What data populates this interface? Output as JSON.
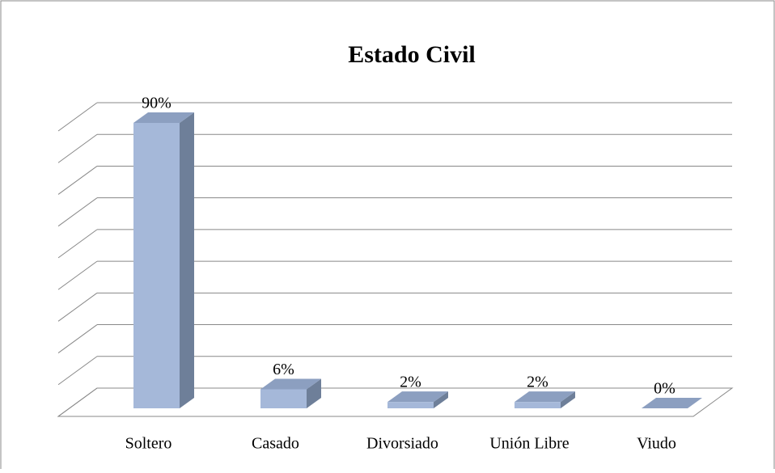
{
  "chart_data": {
    "type": "bar3d",
    "title": "Estado Civil",
    "categories": [
      "Soltero",
      "Casado",
      "Divorsiado",
      "Unión Libre",
      "Viudo"
    ],
    "values": [
      90,
      6,
      2,
      2,
      0
    ],
    "value_labels": [
      "90%",
      "6%",
      "2%",
      "2%",
      "0%"
    ],
    "color": "#a5b8d9",
    "ylim": [
      0,
      90
    ],
    "yticks": [
      0,
      10,
      20,
      30,
      40,
      50,
      60,
      70,
      80,
      90
    ],
    "grid": true
  }
}
